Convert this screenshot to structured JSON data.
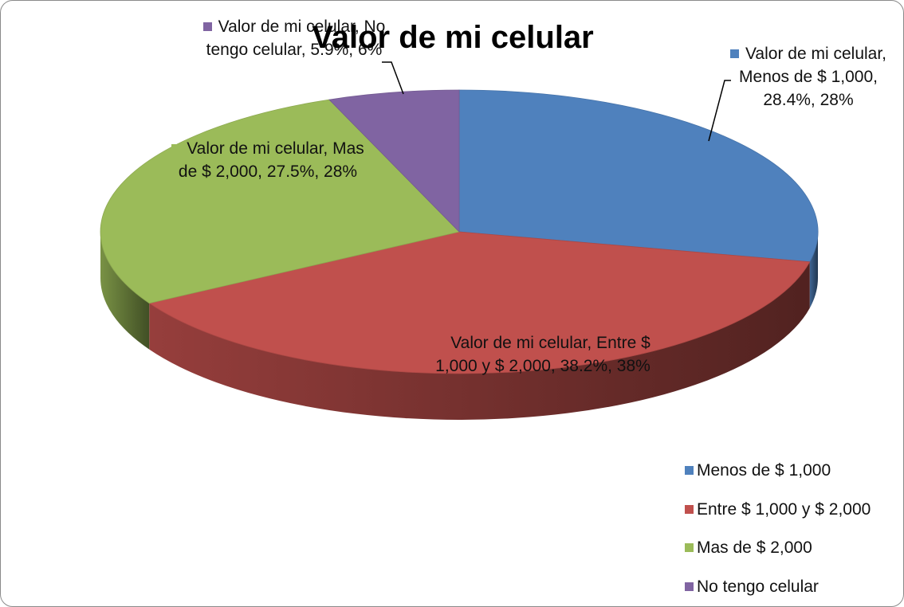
{
  "chart_data": {
    "type": "pie",
    "title": "Valor de mi celular",
    "categories": [
      "Menos de $ 1,000",
      "Entre $ 1,000 y $ 2,000",
      "Mas de $ 2,000",
      "No tengo celular"
    ],
    "series": [
      {
        "name": "Valor de mi celular",
        "values": [
          28.4,
          38.2,
          27.5,
          5.9
        ],
        "value_labels": [
          "Valor de mi celular, Menos de $ 1,000, 28.4%, 28%",
          "Valor de mi celular, Entre $ 1,000 y $ 2,000, 38.2%, 38%",
          "Valor de mi celular, Mas de $ 2,000, 27.5%, 28%",
          "Valor de mi celular, No tengo celular, 5.9%, 6%"
        ],
        "colors": [
          "#4f81bd",
          "#c0504d",
          "#9bbb59",
          "#8064a2"
        ]
      }
    ],
    "legend": "bottom-right"
  }
}
